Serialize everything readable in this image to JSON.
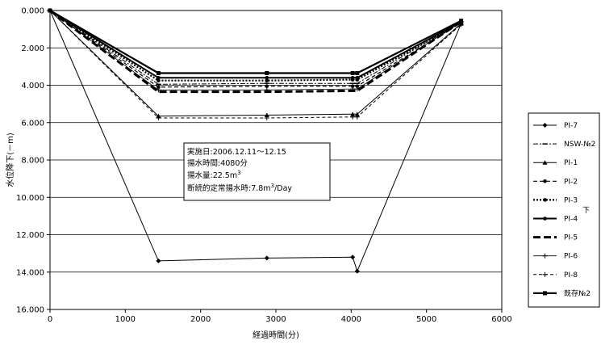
{
  "chart_data": {
    "type": "line",
    "xlabel": "経過時間(分)",
    "ylabel": "水位降下(－m)",
    "xlim": [
      0,
      6000
    ],
    "ylim": [
      0,
      16
    ],
    "y_inverted": true,
    "x_ticks": [
      "0",
      "1000",
      "2000",
      "3000",
      "4000",
      "5000",
      "6000"
    ],
    "y_ticks": [
      "0.000",
      "2.000",
      "4.000",
      "6.000",
      "8.000",
      "10.000",
      "12.000",
      "14.000",
      "16.000"
    ],
    "grid": "horizontal",
    "legend_position": "right",
    "series": [
      {
        "name": "PI-7",
        "style": "thin-diamond",
        "x": [
          0,
          1440,
          2880,
          4020,
          4080,
          5460
        ],
        "y": [
          0,
          13.4,
          13.25,
          13.2,
          13.95,
          0.7
        ]
      },
      {
        "name": "NSW-№2",
        "style": "dashdot-dash",
        "x": [
          0,
          1440,
          2880,
          4020,
          4080,
          5460
        ],
        "y": [
          0,
          3.95,
          3.9,
          3.9,
          3.9,
          0.6
        ]
      },
      {
        "name": "PI-1",
        "style": "thin-triangle",
        "x": [
          0,
          1440,
          2880,
          4020,
          4080,
          5460
        ],
        "y": [
          0,
          5.65,
          5.6,
          5.55,
          5.55,
          0.7
        ]
      },
      {
        "name": "PI-2",
        "style": "dash-dot",
        "x": [
          0,
          1440,
          2880,
          4020,
          4080,
          5460
        ],
        "y": [
          0,
          4.1,
          4.05,
          4.05,
          4.05,
          0.65
        ]
      },
      {
        "name": "PI-3",
        "style": "dotted",
        "x": [
          0,
          1440,
          2880,
          4020,
          4080,
          5460
        ],
        "y": [
          0,
          3.75,
          3.75,
          3.7,
          3.7,
          0.65
        ]
      },
      {
        "name": "PI-4",
        "style": "solid-dot",
        "x": [
          0,
          1440,
          2880,
          4020,
          4080,
          5460
        ],
        "y": [
          0,
          3.6,
          3.6,
          3.6,
          3.6,
          0.6
        ]
      },
      {
        "name": "PI-5",
        "style": "thick-dash",
        "x": [
          0,
          1440,
          2880,
          4020,
          4080,
          5460
        ],
        "y": [
          0,
          4.35,
          4.35,
          4.3,
          4.3,
          0.6
        ]
      },
      {
        "name": "PI-6",
        "style": "thin-plus",
        "x": [
          0,
          1440,
          2880,
          4020,
          4080,
          5460
        ],
        "y": [
          0,
          4.25,
          4.25,
          4.2,
          4.2,
          0.6
        ]
      },
      {
        "name": "PI-8",
        "style": "dash-plus",
        "x": [
          0,
          1440,
          2880,
          4020,
          4080,
          5460
        ],
        "y": [
          0,
          5.75,
          5.75,
          5.7,
          5.7,
          0.75
        ]
      },
      {
        "name": "既存№2",
        "style": "thick-square",
        "x": [
          0,
          1440,
          2880,
          4020,
          4080,
          5460
        ],
        "y": [
          0,
          3.35,
          3.35,
          3.35,
          3.35,
          0.55
        ]
      }
    ],
    "legend_extra": "下",
    "annotation": {
      "line1": "実施日:2006.12.11～12.15",
      "line2": "揚水時間:4080分",
      "line3_prefix": "揚水量:22.5m",
      "line3_sup": "3",
      "line4_prefix": "断続的定常揚水時:7.8m",
      "line4_sup": "3",
      "line4_suffix": "/Day"
    }
  }
}
